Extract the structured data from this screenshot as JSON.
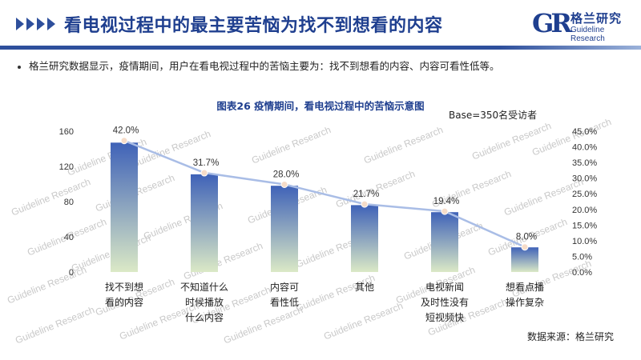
{
  "header": {
    "title": "看电视过程中的最主要苦恼为找不到想看的内容",
    "logo_mark": "GR",
    "logo_cn": "格兰研究",
    "logo_en": "Guideline Research"
  },
  "bullet_text": "格兰研究数据显示，疫情期间，用户在看电视过程中的苦恼主要为：找不到想看的内容、内容可看性低等。",
  "base_note": "Base=350名受访者",
  "source": "数据来源：格兰研究",
  "watermark_text": "Guideline Research",
  "colors": {
    "accent": "#2e4f9c",
    "bar_top": "#3f62b8",
    "bar_bottom": "#dbe9c6",
    "line": "#a9bde6",
    "marker": "#f6dcc8"
  },
  "chart_data": {
    "type": "bar",
    "title": "图表26  疫情期间，看电视过程中的苦恼示意图",
    "categories": [
      [
        "找不到想",
        "看的内容"
      ],
      [
        "不知道什么",
        "时候播放",
        "什么内容"
      ],
      [
        "内容可",
        "看性低"
      ],
      [
        "其他"
      ],
      [
        "电视新闻",
        "及时性没有",
        "短视频快"
      ],
      [
        "想看点播",
        "操作复杂"
      ]
    ],
    "values": [
      147,
      111,
      98,
      76,
      68,
      28
    ],
    "percent": [
      42.0,
      31.7,
      28.0,
      21.7,
      19.4,
      8.0
    ],
    "percent_labels": [
      "42.0%",
      "31.7%",
      "28.0%",
      "21.7%",
      "19.4%",
      "8.0%"
    ],
    "ylim": [
      0,
      160
    ],
    "yticks": [
      0,
      40,
      80,
      120,
      160
    ],
    "y2lim": [
      0,
      45
    ],
    "y2ticks": [
      "0.0%",
      "5.0%",
      "10.0%",
      "15.0%",
      "20.0%",
      "25.0%",
      "30.0%",
      "35.0%",
      "40.0%",
      "45.0%"
    ],
    "grid": false
  }
}
